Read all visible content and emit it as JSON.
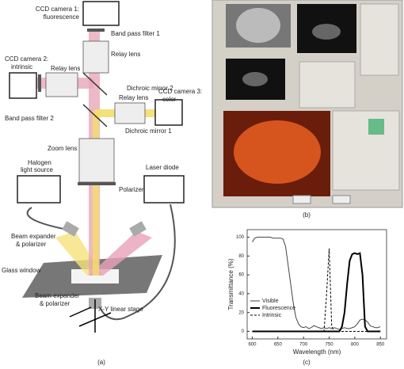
{
  "figure": {
    "panels": [
      "(a)",
      "(b)",
      "(c)"
    ],
    "diagram": {
      "labels": [
        "CCD camera 1:",
        "fluorescence",
        "Band pass filter 1",
        "Relay lens",
        "CCD camera 2:",
        "intrinsic",
        "Relay lens",
        "Dichroic mirror 2",
        "CCD camera 3:",
        "color",
        "Relay lens",
        "Band pass filter 2",
        "Dichroic mirror 1",
        "Zoom lens",
        "Halogen",
        "light source",
        "Laser diode",
        "Polarizer",
        "Beam expander",
        "& polarizer",
        "Glass window",
        "Beam expander",
        "& polarizer",
        "X-Y linear stage"
      ]
    }
  },
  "chart_data": {
    "type": "line",
    "xlabel": "Wavelength (nm)",
    "ylabel": "Transmittance (%)",
    "x": [
      600,
      605,
      610,
      615,
      620,
      625,
      630,
      635,
      640,
      645,
      650,
      655,
      660,
      665,
      670,
      675,
      680,
      685,
      690,
      695,
      700,
      705,
      710,
      715,
      720,
      725,
      730,
      735,
      740,
      745,
      750,
      755,
      760,
      765,
      770,
      775,
      780,
      785,
      790,
      795,
      800,
      805,
      810,
      815,
      820,
      825,
      830,
      835,
      840,
      845,
      850
    ],
    "series": [
      {
        "name": "Visible",
        "color": "#444444",
        "linestyle": "solid",
        "linewidth": 1,
        "values": [
          95,
          99,
          100,
          100,
          100,
          100,
          100,
          100,
          99,
          99,
          99,
          99,
          98,
          90,
          70,
          50,
          30,
          15,
          8,
          5,
          4,
          5,
          3,
          4,
          6,
          5,
          4,
          3,
          4,
          3,
          4,
          3,
          4,
          3,
          2,
          3,
          4,
          3,
          3,
          4,
          5,
          8,
          12,
          13,
          12,
          10,
          6,
          5,
          4,
          4,
          5
        ]
      },
      {
        "name": "Fluorescence",
        "color": "#000000",
        "linestyle": "solid",
        "linewidth": 2,
        "values": [
          0,
          0,
          0,
          0,
          0,
          0,
          0,
          0,
          0,
          0,
          0,
          0,
          0,
          0,
          0,
          0,
          0,
          0,
          0,
          0,
          0,
          0,
          0,
          0,
          0,
          0,
          0,
          0,
          0,
          0,
          0,
          0,
          0,
          0,
          0,
          5,
          20,
          50,
          75,
          82,
          83,
          82,
          83,
          60,
          5,
          0,
          0,
          0,
          0,
          0,
          0
        ]
      },
      {
        "name": "Intrinsic",
        "color": "#000000",
        "linestyle": "dashed",
        "linewidth": 1,
        "values": [
          0,
          0,
          0,
          0,
          0,
          0,
          0,
          0,
          0,
          0,
          0,
          0,
          0,
          0,
          0,
          0,
          0,
          0,
          0,
          0,
          0,
          0,
          0,
          0,
          0,
          0,
          0,
          0,
          0,
          40,
          88,
          5,
          0,
          0,
          0,
          0,
          0,
          0,
          0,
          0,
          0,
          0,
          0,
          0,
          0,
          0,
          0,
          0,
          0,
          0,
          0
        ]
      }
    ],
    "xlim": [
      590,
      862
    ],
    "ylim": [
      -8,
      108
    ],
    "xticks": [
      600,
      650,
      700,
      750,
      800,
      850
    ],
    "yticks": [
      0,
      20,
      40,
      60,
      80,
      100
    ],
    "grid": false,
    "legend": "lower left"
  }
}
